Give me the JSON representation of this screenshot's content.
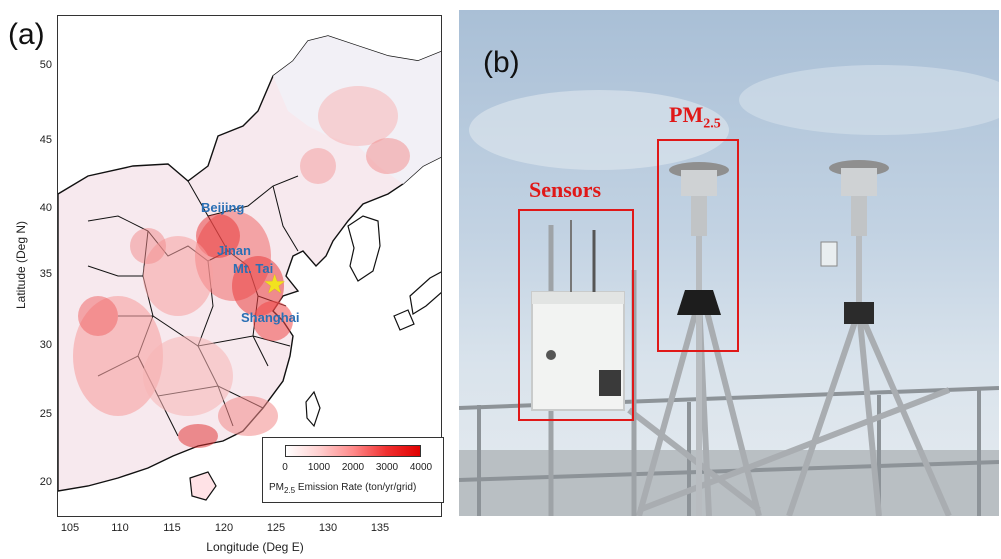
{
  "panel_a": {
    "letter": "(a)",
    "y_axis": {
      "title": "Latitude (Deg N)",
      "ticks": [
        "50",
        "45",
        "40",
        "35",
        "30",
        "25",
        "20"
      ]
    },
    "x_axis": {
      "title": "Longitude (Deg E)",
      "ticks": [
        "105",
        "110",
        "115",
        "120",
        "125",
        "130",
        "135"
      ]
    },
    "cities": {
      "beijing": "Beijing",
      "jinan": "Jinan",
      "mt_tai": "Mt. Tai",
      "shanghai": "Shanghai"
    },
    "legend": {
      "ticks": [
        "0",
        "1000",
        "2000",
        "3000",
        "4000"
      ],
      "label_prefix": "PM",
      "label_sub": "2.5",
      "label_suffix": " Emission Rate (ton/yr/grid)"
    },
    "colors": {
      "low": "#ffffff",
      "high": "#e00000",
      "star": "#f2e21e",
      "city_label": "#2a6fb4"
    }
  },
  "panel_b": {
    "letter": "(b)",
    "label_sensors": "Sensors",
    "label_pm_main": "PM",
    "label_pm_sub": "2.5",
    "colors": {
      "annotation": "#e01818"
    }
  }
}
